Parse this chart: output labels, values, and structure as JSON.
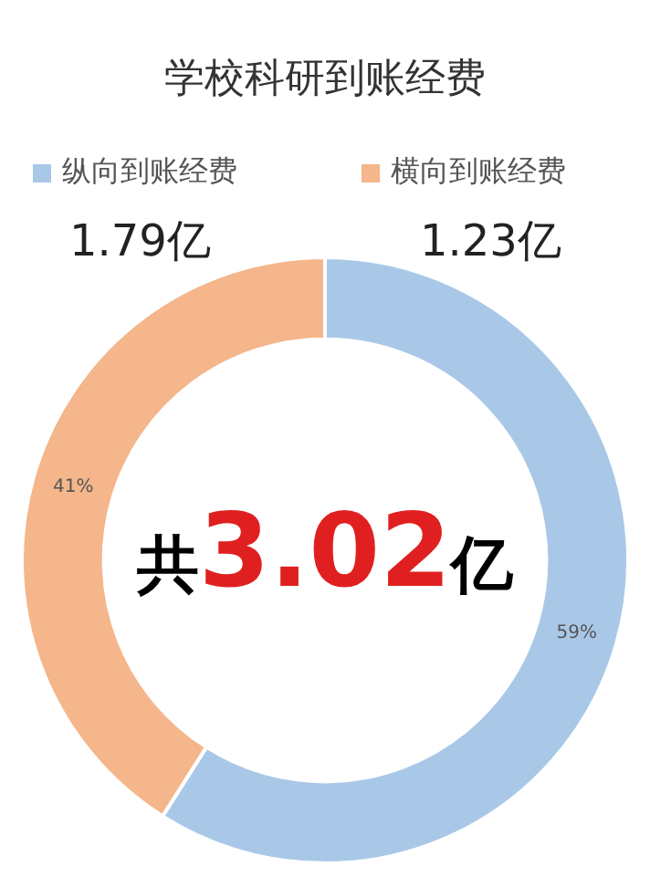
{
  "chart_data": {
    "type": "donut",
    "title": "学校科研到账经费",
    "categories": [
      "纵向到账经费",
      "横向到账经费"
    ],
    "values": [
      59,
      41
    ],
    "value_labels": [
      "59%",
      "41%"
    ],
    "colors": [
      "#a9c8e8",
      "#f4b68a"
    ],
    "legend": "top",
    "annotations": [
      "1.79亿",
      "1.23亿",
      "共3.02亿"
    ]
  }
}
